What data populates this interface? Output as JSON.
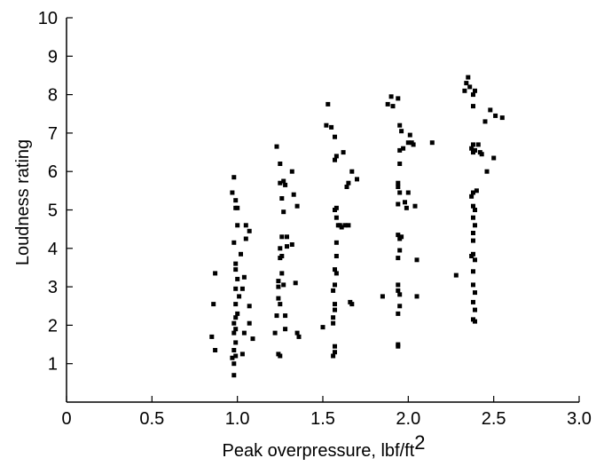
{
  "chart_data": {
    "type": "scatter",
    "title": "",
    "xlabel_text": "Peak overpressure, lbf/ft",
    "xlabel_sup": "2",
    "ylabel": "Loudness rating",
    "xlim": [
      0,
      3.0
    ],
    "ylim": [
      0,
      10
    ],
    "x_ticks": [
      0,
      0.5,
      1.0,
      1.5,
      2.0,
      2.5,
      3.0
    ],
    "x_tick_labels": [
      "0",
      "0.5",
      "1.0",
      "1.5",
      "2.0",
      "2.5",
      "3.0"
    ],
    "y_ticks": [
      1,
      2,
      3,
      4,
      5,
      6,
      7,
      8,
      9,
      10
    ],
    "y_tick_labels": [
      "1",
      "2",
      "3",
      "4",
      "5",
      "6",
      "7",
      "8",
      "9",
      "10"
    ],
    "grid": false,
    "marker_color": "#000000",
    "marker_shape": "square",
    "points": [
      [
        0.85,
        1.7
      ],
      [
        0.87,
        1.35
      ],
      [
        0.86,
        2.55
      ],
      [
        0.87,
        3.35
      ],
      [
        0.98,
        0.7
      ],
      [
        0.98,
        1.0
      ],
      [
        0.97,
        1.15
      ],
      [
        0.99,
        1.2
      ],
      [
        0.98,
        1.35
      ],
      [
        0.99,
        1.55
      ],
      [
        0.98,
        1.8
      ],
      [
        0.99,
        1.9
      ],
      [
        0.98,
        2.05
      ],
      [
        0.99,
        2.2
      ],
      [
        1.0,
        2.3
      ],
      [
        0.99,
        2.55
      ],
      [
        1.01,
        2.75
      ],
      [
        0.99,
        2.95
      ],
      [
        1.0,
        3.2
      ],
      [
        0.99,
        3.45
      ],
      [
        0.99,
        3.6
      ],
      [
        0.98,
        4.15
      ],
      [
        1.0,
        4.6
      ],
      [
        0.99,
        5.05
      ],
      [
        1.0,
        5.05
      ],
      [
        0.99,
        5.25
      ],
      [
        0.97,
        5.45
      ],
      [
        0.98,
        5.85
      ],
      [
        1.03,
        1.25
      ],
      [
        1.04,
        1.8
      ],
      [
        1.03,
        2.95
      ],
      [
        1.04,
        3.25
      ],
      [
        1.02,
        3.85
      ],
      [
        1.05,
        4.25
      ],
      [
        1.05,
        4.6
      ],
      [
        1.07,
        4.45
      ],
      [
        1.07,
        2.5
      ],
      [
        1.07,
        2.05
      ],
      [
        1.09,
        1.65
      ],
      [
        1.22,
        1.8
      ],
      [
        1.24,
        1.25
      ],
      [
        1.25,
        1.2
      ],
      [
        1.23,
        2.25
      ],
      [
        1.25,
        2.55
      ],
      [
        1.24,
        2.7
      ],
      [
        1.24,
        3.0
      ],
      [
        1.24,
        3.15
      ],
      [
        1.26,
        3.35
      ],
      [
        1.25,
        3.75
      ],
      [
        1.26,
        3.8
      ],
      [
        1.25,
        4.0
      ],
      [
        1.26,
        4.3
      ],
      [
        1.25,
        5.7
      ],
      [
        1.23,
        6.65
      ],
      [
        1.25,
        6.2
      ],
      [
        1.27,
        5.75
      ],
      [
        1.28,
        5.65
      ],
      [
        1.26,
        5.3
      ],
      [
        1.27,
        4.95
      ],
      [
        1.29,
        4.3
      ],
      [
        1.29,
        4.05
      ],
      [
        1.27,
        3.05
      ],
      [
        1.28,
        2.25
      ],
      [
        1.28,
        1.9
      ],
      [
        1.32,
        6.0
      ],
      [
        1.33,
        5.4
      ],
      [
        1.32,
        4.1
      ],
      [
        1.34,
        3.1
      ],
      [
        1.35,
        1.8
      ],
      [
        1.36,
        1.7
      ],
      [
        1.35,
        5.1
      ],
      [
        1.53,
        7.75
      ],
      [
        1.52,
        7.2
      ],
      [
        1.55,
        7.15
      ],
      [
        1.57,
        6.9
      ],
      [
        1.58,
        6.4
      ],
      [
        1.57,
        6.3
      ],
      [
        1.5,
        1.95
      ],
      [
        1.56,
        1.2
      ],
      [
        1.57,
        1.3
      ],
      [
        1.57,
        1.45
      ],
      [
        1.56,
        2.05
      ],
      [
        1.56,
        2.2
      ],
      [
        1.57,
        2.4
      ],
      [
        1.57,
        2.55
      ],
      [
        1.56,
        2.9
      ],
      [
        1.57,
        3.05
      ],
      [
        1.58,
        3.35
      ],
      [
        1.57,
        3.45
      ],
      [
        1.58,
        3.8
      ],
      [
        1.58,
        4.15
      ],
      [
        1.59,
        4.6
      ],
      [
        1.58,
        4.8
      ],
      [
        1.57,
        5.0
      ],
      [
        1.58,
        5.05
      ],
      [
        1.6,
        4.6
      ],
      [
        1.62,
        6.5
      ],
      [
        1.61,
        4.55
      ],
      [
        1.63,
        4.6
      ],
      [
        1.65,
        4.6
      ],
      [
        1.64,
        5.6
      ],
      [
        1.65,
        5.7
      ],
      [
        1.67,
        6.0
      ],
      [
        1.66,
        2.6
      ],
      [
        1.67,
        2.55
      ],
      [
        1.7,
        5.8
      ],
      [
        1.85,
        2.75
      ],
      [
        1.88,
        7.75
      ],
      [
        1.9,
        7.95
      ],
      [
        1.91,
        7.7
      ],
      [
        1.94,
        7.9
      ],
      [
        1.94,
        1.45
      ],
      [
        1.94,
        1.5
      ],
      [
        1.94,
        2.3
      ],
      [
        1.95,
        2.5
      ],
      [
        1.95,
        2.8
      ],
      [
        1.94,
        2.9
      ],
      [
        1.94,
        3.05
      ],
      [
        1.94,
        3.75
      ],
      [
        1.95,
        3.95
      ],
      [
        1.95,
        4.25
      ],
      [
        1.94,
        4.35
      ],
      [
        1.96,
        4.3
      ],
      [
        1.94,
        5.15
      ],
      [
        1.95,
        5.45
      ],
      [
        1.94,
        5.6
      ],
      [
        1.94,
        5.7
      ],
      [
        1.95,
        6.2
      ],
      [
        1.95,
        6.55
      ],
      [
        1.96,
        7.05
      ],
      [
        1.95,
        7.2
      ],
      [
        1.97,
        6.6
      ],
      [
        1.98,
        5.2
      ],
      [
        1.99,
        5.05
      ],
      [
        2.0,
        5.45
      ],
      [
        2.0,
        6.75
      ],
      [
        2.01,
        6.95
      ],
      [
        2.02,
        6.75
      ],
      [
        2.03,
        6.7
      ],
      [
        2.04,
        5.1
      ],
      [
        2.05,
        3.7
      ],
      [
        2.05,
        2.75
      ],
      [
        2.14,
        6.75
      ],
      [
        2.28,
        3.3
      ],
      [
        2.34,
        8.3
      ],
      [
        2.33,
        8.1
      ],
      [
        2.35,
        8.45
      ],
      [
        2.36,
        8.2
      ],
      [
        2.38,
        8.0
      ],
      [
        2.39,
        8.1
      ],
      [
        2.38,
        7.7
      ],
      [
        2.37,
        6.6
      ],
      [
        2.38,
        6.7
      ],
      [
        2.38,
        6.5
      ],
      [
        2.39,
        6.55
      ],
      [
        2.38,
        5.45
      ],
      [
        2.37,
        5.35
      ],
      [
        2.38,
        5.1
      ],
      [
        2.39,
        5.0
      ],
      [
        2.38,
        4.8
      ],
      [
        2.39,
        4.6
      ],
      [
        2.38,
        4.4
      ],
      [
        2.38,
        4.2
      ],
      [
        2.38,
        3.85
      ],
      [
        2.37,
        3.8
      ],
      [
        2.39,
        3.7
      ],
      [
        2.38,
        3.4
      ],
      [
        2.38,
        3.05
      ],
      [
        2.39,
        2.85
      ],
      [
        2.38,
        2.6
      ],
      [
        2.39,
        2.4
      ],
      [
        2.38,
        2.15
      ],
      [
        2.39,
        2.1
      ],
      [
        2.4,
        5.5
      ],
      [
        2.41,
        6.7
      ],
      [
        2.42,
        6.5
      ],
      [
        2.43,
        6.45
      ],
      [
        2.45,
        7.3
      ],
      [
        2.46,
        6.0
      ],
      [
        2.48,
        7.6
      ],
      [
        2.5,
        6.35
      ],
      [
        2.51,
        7.45
      ],
      [
        2.55,
        7.4
      ]
    ]
  }
}
